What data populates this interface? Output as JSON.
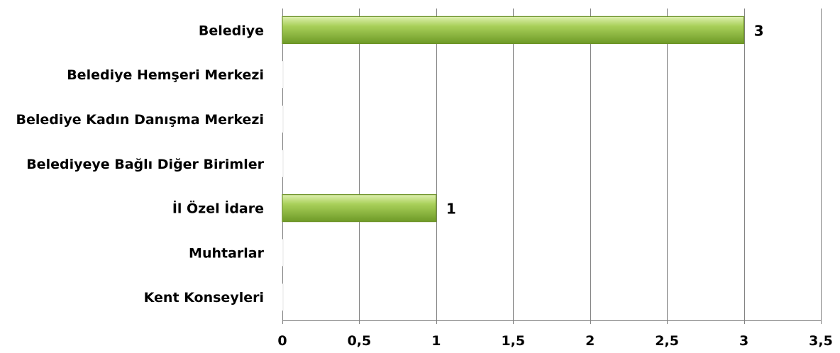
{
  "chart_data": {
    "type": "bar",
    "orientation": "horizontal",
    "title": "",
    "xlabel": "",
    "ylabel": "",
    "categories": [
      "Belediye",
      "Belediye Hemşeri Merkezi",
      "Belediye Kadın Danışma Merkezi",
      "Belediyeye Bağlı Diğer Birimler",
      "İl Özel İdare",
      "Muhtarlar",
      "Kent Konseyleri"
    ],
    "values": [
      3,
      0,
      0,
      0,
      1,
      0,
      0
    ],
    "data_labels": [
      "3",
      "",
      "",
      "",
      "1",
      "",
      ""
    ],
    "xlim": [
      0,
      3.5
    ],
    "ticks": [
      0,
      0.5,
      1,
      1.5,
      2,
      2.5,
      3,
      3.5
    ],
    "tick_labels": [
      "0",
      "0,5",
      "1",
      "1,5",
      "2",
      "2,5",
      "3",
      "3,5"
    ],
    "grid": "vertical",
    "legend": "none",
    "bar_color": "#8db53a",
    "bar_color_light": "#cfe894",
    "bar_color_dark": "#6b9224",
    "grid_color": "#808080"
  }
}
